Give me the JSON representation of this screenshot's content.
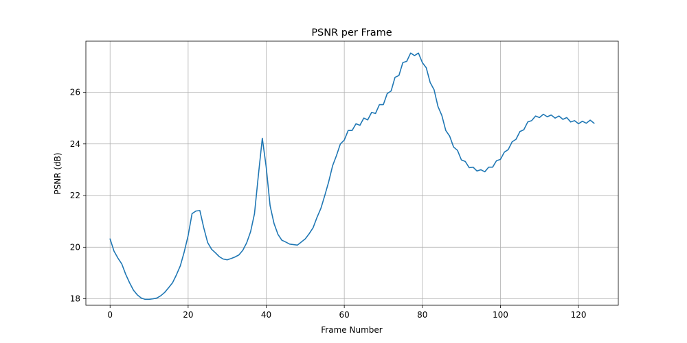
{
  "chart_data": {
    "type": "line",
    "title": "PSNR per Frame",
    "xlabel": "Frame Number",
    "ylabel": "PSNR (dB)",
    "xlim": [
      -6.2,
      130.2
    ],
    "ylim": [
      17.75,
      27.98
    ],
    "xticks": [
      0,
      20,
      40,
      60,
      80,
      100,
      120
    ],
    "yticks": [
      18,
      20,
      22,
      24,
      26
    ],
    "grid": true,
    "legend": "none",
    "series": [
      {
        "color": "#1f77b4",
        "x": [
          0,
          1,
          2,
          3,
          4,
          5,
          6,
          7,
          8,
          9,
          10,
          11,
          12,
          13,
          14,
          15,
          16,
          17,
          18,
          19,
          20,
          21,
          22,
          23,
          24,
          25,
          26,
          27,
          28,
          29,
          30,
          31,
          32,
          33,
          34,
          35,
          36,
          37,
          38,
          39,
          40,
          41,
          42,
          43,
          44,
          45,
          46,
          47,
          48,
          49,
          50,
          51,
          52,
          53,
          54,
          55,
          56,
          57,
          58,
          59,
          60,
          61,
          62,
          63,
          64,
          65,
          66,
          67,
          68,
          69,
          70,
          71,
          72,
          73,
          74,
          75,
          76,
          77,
          78,
          79,
          80,
          81,
          82,
          83,
          84,
          85,
          86,
          87,
          88,
          89,
          90,
          91,
          92,
          93,
          94,
          95,
          96,
          97,
          98,
          99,
          100,
          101,
          102,
          103,
          104,
          105,
          106,
          107,
          108,
          109,
          110,
          111,
          112,
          113,
          114,
          115,
          116,
          117,
          118,
          119,
          120,
          121,
          122,
          123,
          124
        ],
        "values": [
          20.32,
          19.85,
          19.58,
          19.35,
          18.95,
          18.62,
          18.33,
          18.15,
          18.03,
          17.98,
          17.98,
          18.0,
          18.03,
          18.12,
          18.25,
          18.43,
          18.62,
          18.93,
          19.28,
          19.82,
          20.45,
          21.3,
          21.4,
          21.42,
          20.75,
          20.18,
          19.92,
          19.78,
          19.63,
          19.54,
          19.51,
          19.56,
          19.62,
          19.7,
          19.88,
          20.17,
          20.6,
          21.3,
          22.8,
          24.22,
          23.1,
          21.6,
          20.92,
          20.5,
          20.27,
          20.2,
          20.12,
          20.1,
          20.08,
          20.2,
          20.32,
          20.52,
          20.75,
          21.15,
          21.5,
          22.0,
          22.53,
          23.15,
          23.55,
          24.0,
          24.15,
          24.52,
          24.52,
          24.78,
          24.72,
          25.0,
          24.93,
          25.22,
          25.18,
          25.52,
          25.52,
          25.95,
          26.05,
          26.58,
          26.65,
          27.15,
          27.2,
          27.52,
          27.42,
          27.52,
          27.15,
          26.95,
          26.38,
          26.1,
          25.45,
          25.1,
          24.52,
          24.3,
          23.88,
          23.75,
          23.38,
          23.32,
          23.08,
          23.1,
          22.95,
          23.0,
          22.92,
          23.1,
          23.1,
          23.35,
          23.4,
          23.68,
          23.78,
          24.08,
          24.18,
          24.48,
          24.55,
          24.85,
          24.9,
          25.08,
          25.02,
          25.15,
          25.05,
          25.12,
          25.0,
          25.08,
          24.95,
          25.02,
          24.85,
          24.9,
          24.78,
          24.88,
          24.8,
          24.92,
          24.8
        ]
      }
    ]
  }
}
